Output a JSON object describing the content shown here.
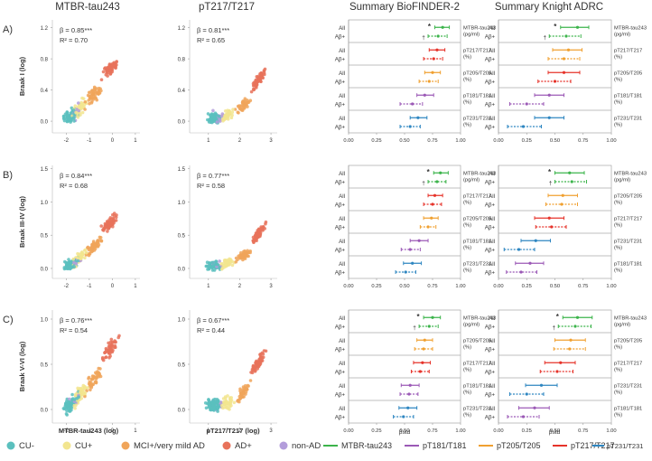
{
  "chart_data": {
    "type": "scatter",
    "column_titles": [
      "MTBR-tau243",
      "pT217/T217",
      "Summary BioFINDER-2",
      "Summary Knight ADRC"
    ],
    "rows": [
      {
        "panel_label": "A)",
        "ylabel": "Braak I (log)",
        "scatter": [
          {
            "beta": "β = 0.85***",
            "r2": "R² = 0.70",
            "xlim": [
              -2.6,
              1.2
            ],
            "xticks": [
              "-2",
              "-1",
              "0",
              "1"
            ],
            "ylim": [
              -0.15,
              1.3
            ],
            "yticks": [
              "0.0",
              "0.4",
              "0.8",
              "1.2"
            ],
            "trend": "early"
          },
          {
            "beta": "β = 0.81***",
            "r2": "R² = 0.65",
            "xlim": [
              0.4,
              3.2
            ],
            "xticks": [
              "1",
              "2",
              "3"
            ],
            "ylim": [
              -0.15,
              1.3
            ],
            "yticks": [
              "0.0",
              "0.4",
              "0.8",
              "1.2"
            ],
            "trend": "late"
          }
        ],
        "forest": [
          {
            "labels": [
              "MTBR-tau243\n(pg/ml)",
              "pT217/T217\n(%)",
              "pT205/T205\n(%)",
              "pT181/T181\n(%)",
              "pT231/T231\n(%)"
            ],
            "colors": [
              "#3cb44b",
              "#e6332a",
              "#f0a030",
              "#9b59b6",
              "#2e86c1"
            ],
            "all": [
              [
                0.84,
                0.77,
                0.9
              ],
              [
                0.79,
                0.72,
                0.86
              ],
              [
                0.75,
                0.68,
                0.82
              ],
              [
                0.68,
                0.61,
                0.76
              ],
              [
                0.62,
                0.55,
                0.7
              ]
            ],
            "abeta": [
              [
                0.8,
                0.71,
                0.88
              ],
              [
                0.76,
                0.67,
                0.84
              ],
              [
                0.72,
                0.63,
                0.8
              ],
              [
                0.57,
                0.46,
                0.66
              ],
              [
                0.55,
                0.46,
                0.64
              ]
            ],
            "marks": [
              "*",
              "†"
            ]
          },
          {
            "labels": [
              "MTBR-tau243\n(pg/ml)",
              "pT217/T217\n(%)",
              "pT205/T205\n(%)",
              "pT181/T181\n(%)",
              "pT231/T231\n(%)"
            ],
            "colors": [
              "#3cb44b",
              "#f0a030",
              "#e6332a",
              "#9b59b6",
              "#2e86c1"
            ],
            "all": [
              [
                0.7,
                0.55,
                0.8
              ],
              [
                0.62,
                0.48,
                0.74
              ],
              [
                0.58,
                0.44,
                0.72
              ],
              [
                0.45,
                0.32,
                0.58
              ],
              [
                0.45,
                0.32,
                0.58
              ]
            ],
            "abeta": [
              [
                0.6,
                0.45,
                0.73
              ],
              [
                0.58,
                0.44,
                0.72
              ],
              [
                0.5,
                0.35,
                0.64
              ],
              [
                0.25,
                0.1,
                0.4
              ],
              [
                0.22,
                0.08,
                0.38
              ]
            ],
            "marks": [
              "*",
              "†"
            ]
          }
        ]
      },
      {
        "panel_label": "B)",
        "ylabel": "Braak III-IV (log)",
        "scatter": [
          {
            "beta": "β = 0.84***",
            "r2": "R² = 0.68",
            "xlim": [
              -2.6,
              1.2
            ],
            "xticks": [
              "-2",
              "-1",
              "0",
              "1"
            ],
            "ylim": [
              -0.15,
              1.55
            ],
            "yticks": [
              "0.0",
              "0.5",
              "1.0",
              "1.5"
            ],
            "trend": "early"
          },
          {
            "beta": "β = 0.77***",
            "r2": "R² = 0.58",
            "xlim": [
              0.4,
              3.2
            ],
            "xticks": [
              "1",
              "2",
              "3"
            ],
            "ylim": [
              -0.15,
              1.55
            ],
            "yticks": [
              "0.0",
              "0.5",
              "1.0",
              "1.5"
            ],
            "trend": "late"
          }
        ],
        "forest": [
          {
            "labels": [
              "MTBR-tau243\n(pg/ml)",
              "pT217/T217\n(%)",
              "pT205/T205\n(%)",
              "pT181/T181\n(%)",
              "pT231/T231\n(%)"
            ],
            "colors": [
              "#3cb44b",
              "#e6332a",
              "#f0a030",
              "#9b59b6",
              "#2e86c1"
            ],
            "all": [
              [
                0.82,
                0.76,
                0.89
              ],
              [
                0.77,
                0.71,
                0.84
              ],
              [
                0.74,
                0.67,
                0.8
              ],
              [
                0.63,
                0.55,
                0.71
              ],
              [
                0.57,
                0.49,
                0.65
              ]
            ],
            "abeta": [
              [
                0.79,
                0.71,
                0.87
              ],
              [
                0.75,
                0.67,
                0.83
              ],
              [
                0.71,
                0.64,
                0.78
              ],
              [
                0.55,
                0.47,
                0.64
              ],
              [
                0.51,
                0.42,
                0.6
              ]
            ],
            "marks": [
              "*",
              "†"
            ]
          },
          {
            "labels": [
              "MTBR-tau243\n(pg/ml)",
              "pT205/T205\n(%)",
              "pT217/T217\n(%)",
              "pT231/T231\n(%)",
              "pT181/T181\n(%)"
            ],
            "colors": [
              "#3cb44b",
              "#f0a030",
              "#e6332a",
              "#2e86c1",
              "#9b59b6"
            ],
            "all": [
              [
                0.63,
                0.5,
                0.76
              ],
              [
                0.57,
                0.44,
                0.7
              ],
              [
                0.45,
                0.32,
                0.58
              ],
              [
                0.33,
                0.2,
                0.46
              ],
              [
                0.28,
                0.15,
                0.4
              ]
            ],
            "abeta": [
              [
                0.65,
                0.5,
                0.78
              ],
              [
                0.56,
                0.42,
                0.7
              ],
              [
                0.47,
                0.33,
                0.6
              ],
              [
                0.18,
                0.05,
                0.32
              ],
              [
                0.2,
                0.07,
                0.34
              ]
            ],
            "marks": [
              "*",
              "†"
            ]
          }
        ]
      },
      {
        "panel_label": "C)",
        "ylabel": "Braak V-VI (log)",
        "scatter": [
          {
            "beta": "β = 0.76***",
            "r2": "R² = 0.54",
            "xlim": [
              -2.6,
              1.2
            ],
            "xticks": [
              "-2",
              "-1",
              "0",
              "1"
            ],
            "ylim": [
              -0.15,
              1.1
            ],
            "yticks": [
              "0.0",
              "0.5",
              "1.0"
            ],
            "trend": "early"
          },
          {
            "beta": "β = 0.67***",
            "r2": "R² = 0.44",
            "xlim": [
              0.4,
              3.2
            ],
            "xticks": [
              "1",
              "2",
              "3"
            ],
            "ylim": [
              -0.15,
              1.1
            ],
            "yticks": [
              "0.0",
              "0.5",
              "1.0"
            ],
            "trend": "late"
          }
        ],
        "forest": [
          {
            "labels": [
              "MTBR-tau243\n(pg/ml)",
              "pT205/T205\n(%)",
              "pT217/T217\n(%)",
              "pT181/T181\n(%)",
              "pT231/T231\n(%)"
            ],
            "colors": [
              "#3cb44b",
              "#f0a030",
              "#e6332a",
              "#9b59b6",
              "#2e86c1"
            ],
            "all": [
              [
                0.75,
                0.67,
                0.82
              ],
              [
                0.68,
                0.61,
                0.75
              ],
              [
                0.66,
                0.58,
                0.73
              ],
              [
                0.55,
                0.47,
                0.63
              ],
              [
                0.53,
                0.45,
                0.61
              ]
            ],
            "abeta": [
              [
                0.72,
                0.63,
                0.8
              ],
              [
                0.67,
                0.59,
                0.75
              ],
              [
                0.64,
                0.56,
                0.72
              ],
              [
                0.54,
                0.46,
                0.62
              ],
              [
                0.49,
                0.4,
                0.58
              ]
            ],
            "marks": [
              "*",
              "†"
            ]
          },
          {
            "labels": [
              "MTBR-tau243\n(pg/ml)",
              "pT205/T205\n(%)",
              "pT217/T217\n(%)",
              "pT231/T231\n(%)",
              "pT181/T181\n(%)"
            ],
            "colors": [
              "#3cb44b",
              "#f0a030",
              "#e6332a",
              "#2e86c1",
              "#9b59b6"
            ],
            "all": [
              [
                0.7,
                0.57,
                0.83
              ],
              [
                0.64,
                0.5,
                0.77
              ],
              [
                0.55,
                0.41,
                0.68
              ],
              [
                0.38,
                0.24,
                0.52
              ],
              [
                0.32,
                0.18,
                0.45
              ]
            ],
            "abeta": [
              [
                0.68,
                0.53,
                0.82
              ],
              [
                0.63,
                0.49,
                0.77
              ],
              [
                0.52,
                0.37,
                0.66
              ],
              [
                0.25,
                0.1,
                0.4
              ],
              [
                0.22,
                0.08,
                0.36
              ]
            ],
            "marks": [
              "*",
              "†"
            ]
          }
        ]
      }
    ],
    "xlabels": [
      "MTBR-tau243 (log)",
      "pT217/T217 (log)",
      "βstd",
      "βstd"
    ],
    "forest_xticks": [
      "0.00",
      "0.25",
      "0.50",
      "0.75",
      "1.00"
    ],
    "forest_xlim": [
      0,
      1
    ],
    "row_labels": [
      "All",
      "Aβ+"
    ],
    "legend_groups": [
      {
        "label": "CU-",
        "color": "#5bc0be"
      },
      {
        "label": "CU+",
        "color": "#f2e58f"
      },
      {
        "label": "MCI+/very mild AD",
        "color": "#f0a55a"
      },
      {
        "label": "AD+",
        "color": "#e8725a"
      },
      {
        "label": "non-AD",
        "color": "#b39ddb"
      }
    ],
    "legend_biomarkers": [
      {
        "label": "MTBR-tau243",
        "color": "#3cb44b"
      },
      {
        "label": "pT181/T181",
        "color": "#9b59b6"
      },
      {
        "label": "pT205/T205",
        "color": "#f0a030"
      },
      {
        "label": "pT217/T217",
        "color": "#e6332a"
      },
      {
        "label": "pT231/T231",
        "color": "#2e86c1"
      }
    ]
  }
}
